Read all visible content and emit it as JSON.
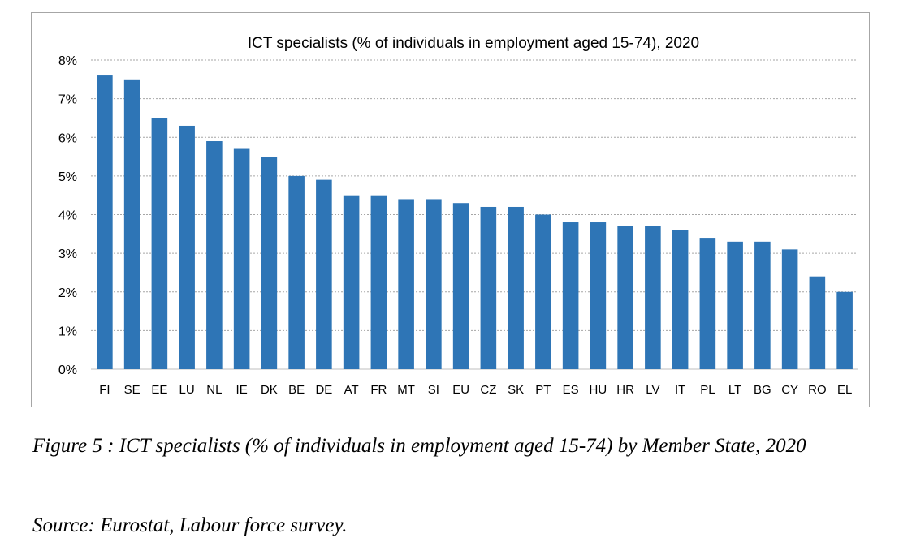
{
  "chart_data": {
    "type": "bar",
    "title": "ICT specialists (% of individuals in employment aged 15-74), 2020",
    "categories": [
      "FI",
      "SE",
      "EE",
      "LU",
      "NL",
      "IE",
      "DK",
      "BE",
      "DE",
      "AT",
      "FR",
      "MT",
      "SI",
      "EU",
      "CZ",
      "SK",
      "PT",
      "ES",
      "HU",
      "HR",
      "LV",
      "IT",
      "PL",
      "LT",
      "BG",
      "CY",
      "RO",
      "EL"
    ],
    "values": [
      7.6,
      7.5,
      6.5,
      6.3,
      5.9,
      5.7,
      5.5,
      5.0,
      4.9,
      4.5,
      4.5,
      4.4,
      4.4,
      4.3,
      4.2,
      4.2,
      4.0,
      3.8,
      3.8,
      3.7,
      3.7,
      3.6,
      3.4,
      3.3,
      3.3,
      3.1,
      2.4,
      2.0
    ],
    "ylim": [
      0,
      8
    ],
    "yticks": [
      "0%",
      "1%",
      "2%",
      "3%",
      "4%",
      "5%",
      "6%",
      "7%",
      "8%"
    ],
    "grid": "horizontal dashed",
    "bar_color": "#2e75b6",
    "grid_color": "#a6a6a6"
  },
  "caption": {
    "figure": "Figure 5 : ICT specialists (% of individuals in employment aged 15-74) by Member State, 2020",
    "source": "Source: Eurostat, Labour force survey."
  }
}
